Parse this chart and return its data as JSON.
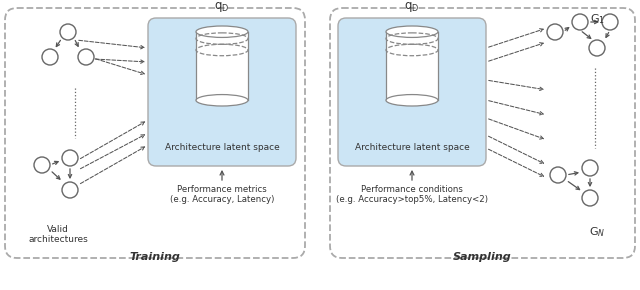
{
  "fig_width": 6.4,
  "fig_height": 2.9,
  "dpi": 100,
  "bg_color": "#ffffff",
  "box_fill": "#cce5f5",
  "box_edge": "#aaaaaa",
  "node_fill": "#ffffff",
  "node_edge": "#666666",
  "arrow_color": "#555555",
  "training_label": "Training",
  "sampling_label": "Sampling",
  "valid_arch_label": "Valid\narchitectures",
  "latent_label": "Architecture latent space",
  "perf_train_label": "Performance metrics\n(e.g. Accuracy, Latency)",
  "perf_sample_label": "Performance conditions\n(e.g. Accuracy>top5%, Latency<2)"
}
